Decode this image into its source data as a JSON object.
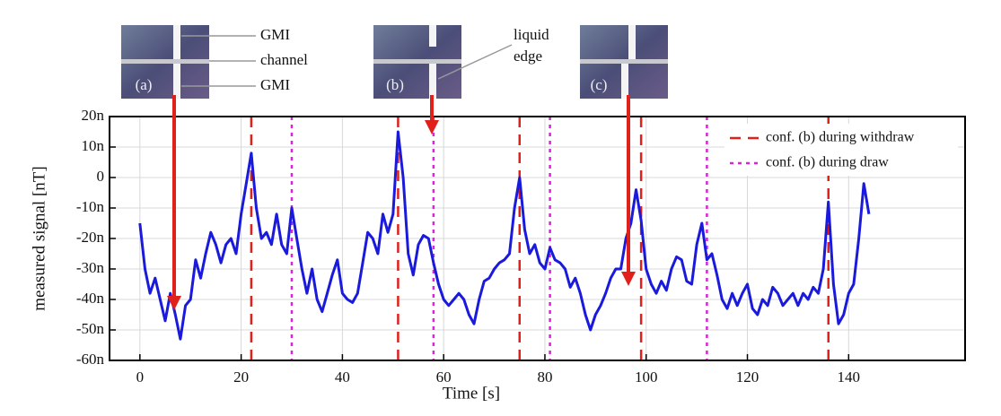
{
  "chart_data": {
    "type": "line",
    "xlabel": "Time [s]",
    "ylabel": "measured signal [nT]",
    "xlim": [
      -6,
      163
    ],
    "ylim": [
      -60,
      20
    ],
    "xticks": [
      0,
      20,
      40,
      60,
      80,
      100,
      120,
      140
    ],
    "yticks": [
      {
        "value": 20,
        "label": "20n"
      },
      {
        "value": 10,
        "label": "10n"
      },
      0,
      {
        "value": -10,
        "label": "-10n"
      },
      {
        "value": -20,
        "label": "-20n"
      },
      {
        "value": -30,
        "label": "-30n"
      },
      {
        "value": -40,
        "label": "-40n"
      },
      {
        "value": -50,
        "label": "-50n"
      },
      {
        "value": -60,
        "label": "-60n"
      }
    ],
    "grid": true,
    "legend": "upper right",
    "x": [
      0,
      1,
      2,
      3,
      4,
      5,
      6,
      7,
      8,
      9,
      10,
      11,
      12,
      13,
      14,
      15,
      16,
      17,
      18,
      19,
      20,
      21,
      22,
      23,
      24,
      25,
      26,
      27,
      28,
      29,
      30,
      31,
      32,
      33,
      34,
      35,
      36,
      37,
      38,
      39,
      40,
      41,
      42,
      43,
      44,
      45,
      46,
      47,
      48,
      49,
      50,
      51,
      52,
      53,
      54,
      55,
      56,
      57,
      58,
      59,
      60,
      61,
      62,
      63,
      64,
      65,
      66,
      67,
      68,
      69,
      70,
      71,
      72,
      73,
      74,
      75,
      76,
      77,
      78,
      79,
      80,
      81,
      82,
      83,
      84,
      85,
      86,
      87,
      88,
      89,
      90,
      91,
      92,
      93,
      94,
      95,
      96,
      97,
      98,
      99,
      100,
      101,
      102,
      103,
      104,
      105,
      106,
      107,
      108,
      109,
      110,
      111,
      112,
      113,
      114,
      115,
      116,
      117,
      118,
      119,
      120,
      121,
      122,
      123,
      124,
      125,
      126,
      127,
      128,
      129,
      130,
      131,
      132,
      133,
      134,
      135,
      136,
      137,
      138,
      139,
      140,
      141,
      142,
      143,
      144
    ],
    "series": [
      {
        "name": "signal",
        "color": "#1a1adc",
        "values": [
          -15,
          -30,
          -38,
          -33,
          -40,
          -47,
          -38,
          -45,
          -53,
          -42,
          -40,
          -27,
          -33,
          -25,
          -18,
          -22,
          -28,
          -22,
          -20,
          -25,
          -12,
          -2,
          8,
          -10,
          -20,
          -18,
          -22,
          -12,
          -22,
          -25,
          -10,
          -20,
          -30,
          -38,
          -30,
          -40,
          -44,
          -38,
          -32,
          -27,
          -38,
          -40,
          -41,
          -38,
          -28,
          -18,
          -20,
          -25,
          -12,
          -18,
          -12,
          15,
          0,
          -25,
          -32,
          -22,
          -19,
          -20,
          -28,
          -35,
          -40,
          -42,
          -40,
          -38,
          -40,
          -45,
          -48,
          -40,
          -34,
          -33,
          -30,
          -28,
          -27,
          -25,
          -10,
          0,
          -17,
          -25,
          -22,
          -28,
          -30,
          -23,
          -27,
          -28,
          -30,
          -36,
          -33,
          -38,
          -45,
          -50,
          -45,
          -42,
          -38,
          -33,
          -30,
          -30,
          -20,
          -15,
          -4,
          -14,
          -30,
          -35,
          -38,
          -34,
          -37,
          -30,
          -26,
          -27,
          -34,
          -35,
          -22,
          -15,
          -27,
          -25,
          -32,
          -40,
          -43,
          -38,
          -42,
          -38,
          -35,
          -43,
          -45,
          -40,
          -42,
          -36,
          -38,
          -42,
          -40,
          -38,
          -42,
          -38,
          -40,
          -36,
          -38,
          -30,
          -8,
          -35,
          -48,
          -45,
          -38,
          -35,
          -20,
          -2,
          -12
        ]
      }
    ],
    "markers": [
      {
        "name": "conf. (b) during withdraw",
        "color": "#e0201b",
        "style": "dashed",
        "x": [
          22,
          51,
          75,
          99,
          136
        ]
      },
      {
        "name": "conf. (b) during draw",
        "color": "#dd22dd",
        "style": "dotted",
        "x": [
          30,
          58,
          81,
          112
        ]
      }
    ],
    "inset_labels": [
      "(a)",
      "(b)",
      "(c)"
    ],
    "annotations": [
      "GMI",
      "channel",
      "GMI",
      "liquid",
      "edge"
    ]
  }
}
